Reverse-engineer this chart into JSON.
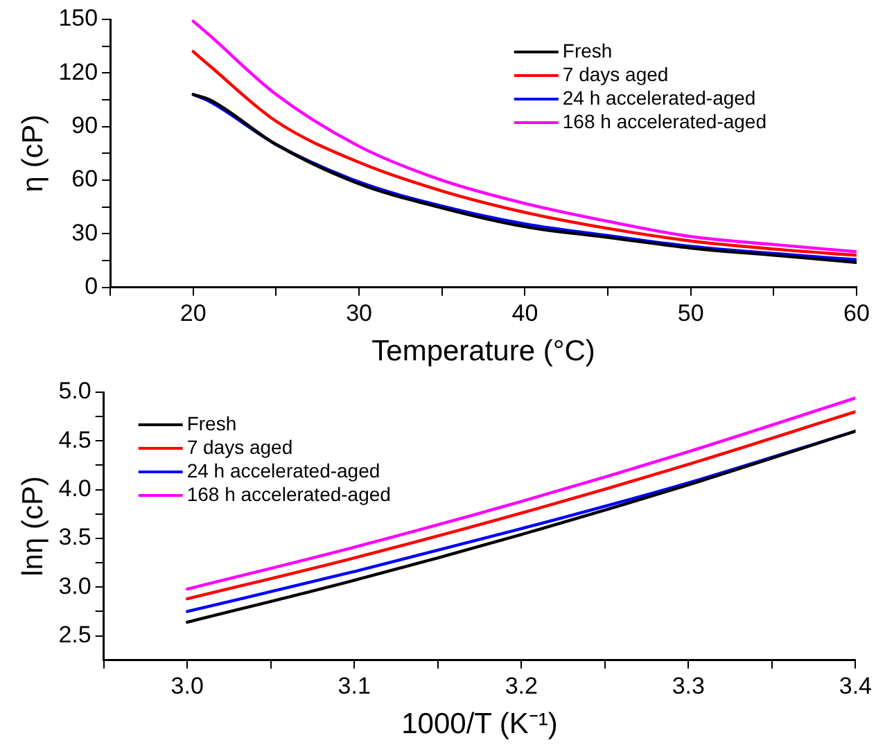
{
  "chart_data": [
    {
      "type": "line",
      "xlabel": "Temperature (°C)",
      "ylabel": "η (cP)",
      "x": [
        20,
        21,
        25,
        30,
        35,
        40,
        45,
        50,
        55,
        60
      ],
      "xlim": [
        15,
        60
      ],
      "xticks": [
        {
          "value": 15,
          "label": null
        },
        20,
        {
          "value": 25,
          "label": null
        },
        30,
        {
          "value": 35,
          "label": null
        },
        40,
        {
          "value": 45,
          "label": null
        },
        50,
        {
          "value": 55,
          "label": null
        },
        60
      ],
      "ylim": [
        0,
        150
      ],
      "yticks": [
        0,
        {
          "value": 15,
          "label": null
        },
        30,
        {
          "value": 45,
          "label": null
        },
        60,
        {
          "value": 75,
          "label": null
        },
        90,
        {
          "value": 105,
          "label": null
        },
        120,
        {
          "value": 135,
          "label": null
        },
        150
      ],
      "grid": false,
      "legend": "top right",
      "marker": "none",
      "line_style": "solid",
      "series": [
        {
          "name": "Fresh",
          "color": "#000000",
          "values": [
            108,
            105,
            80,
            58,
            44.5,
            34,
            28,
            22,
            18,
            14
          ]
        },
        {
          "name": "7 days aged",
          "color": "#ff0000",
          "values": [
            132,
            124,
            93,
            70,
            54,
            42,
            33,
            26,
            21.5,
            18
          ]
        },
        {
          "name": "24 h accelerated-aged",
          "color": "#0000ff",
          "values": [
            108,
            104,
            80,
            59,
            45.5,
            35.5,
            29,
            23,
            19,
            15.5
          ]
        },
        {
          "name": "168 h accelerated-aged",
          "color": "#ff00ff",
          "values": [
            149,
            141,
            108,
            79,
            60,
            47,
            37,
            28.5,
            24,
            20
          ]
        }
      ]
    },
    {
      "type": "line",
      "xlabel": "1000/T (K⁻¹)",
      "ylabel": "lnη (cP)",
      "x": [
        3.0,
        3.1,
        3.2,
        3.3,
        3.4
      ],
      "xlim": [
        2.95,
        3.4
      ],
      "xticks": [
        {
          "value": 2.95,
          "label": null
        },
        "3.0",
        {
          "value": 3.05,
          "label": null
        },
        3.1,
        {
          "value": 3.15,
          "label": null
        },
        3.2,
        {
          "value": 3.25,
          "label": null
        },
        3.3,
        {
          "value": 3.35,
          "label": null
        },
        3.4
      ],
      "ylim": [
        2.25,
        5.0
      ],
      "yticks": [
        2.5,
        {
          "value": 2.75,
          "label": null
        },
        {
          "value": 3.0,
          "label": "3.0"
        },
        {
          "value": 3.25,
          "label": null
        },
        3.5,
        {
          "value": 3.75,
          "label": null
        },
        {
          "value": 4.0,
          "label": "4.0"
        },
        {
          "value": 4.25,
          "label": null
        },
        4.5,
        {
          "value": 4.75,
          "label": null
        },
        {
          "value": 5.0,
          "label": "5.0"
        }
      ],
      "grid": false,
      "legend": "top left",
      "marker": "none",
      "line_style": "solid",
      "series": [
        {
          "name": "Fresh",
          "color": "#000000",
          "values": [
            2.64,
            3.07,
            3.54,
            4.05,
            4.6
          ]
        },
        {
          "name": "7 days aged",
          "color": "#ff0000",
          "values": [
            2.88,
            3.3,
            3.76,
            4.26,
            4.8
          ]
        },
        {
          "name": "24 h accelerated-aged",
          "color": "#0000ff",
          "values": [
            2.75,
            3.16,
            3.6,
            4.07,
            4.6
          ]
        },
        {
          "name": "168 h accelerated-aged",
          "color": "#ff00ff",
          "values": [
            2.98,
            3.41,
            3.88,
            4.39,
            4.94
          ]
        }
      ]
    }
  ]
}
